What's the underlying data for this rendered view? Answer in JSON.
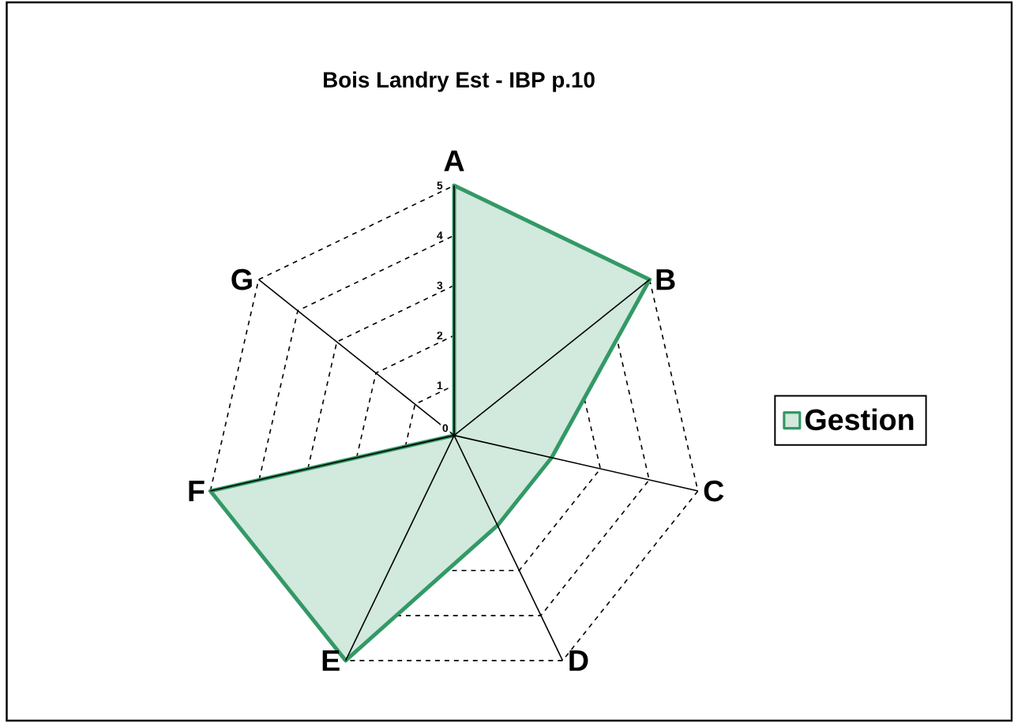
{
  "chart_data": {
    "type": "radar",
    "title": "Bois Landry Est - IBP p.10",
    "categories": [
      "A",
      "B",
      "C",
      "D",
      "E",
      "F",
      "G"
    ],
    "series": [
      {
        "name": "Gestion",
        "color": "#339966",
        "values": [
          5,
          5,
          2,
          2,
          5,
          5,
          0
        ]
      }
    ],
    "ylim": [
      0,
      5
    ],
    "yticks": [
      0,
      1,
      2,
      3,
      4,
      5
    ],
    "grid": true,
    "legend": "right"
  }
}
